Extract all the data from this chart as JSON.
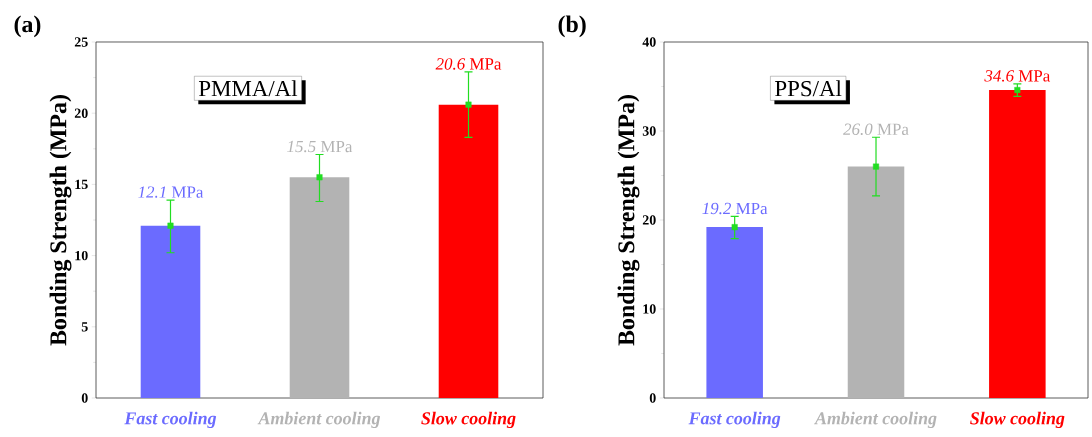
{
  "chart_data": [
    {
      "type": "bar",
      "title": "(a)",
      "ylabel": "Bonding Strength (MPa)",
      "categories": [
        "Fast cooling",
        "Ambient cooling",
        "Slow cooling"
      ],
      "values": [
        12.1,
        15.5,
        20.6
      ],
      "colors": [
        "#6b6bff",
        "#b3b3b3",
        "#ff0000"
      ],
      "errors": [
        [
          10.2,
          13.9
        ],
        [
          13.8,
          17.1
        ],
        [
          18.3,
          22.9
        ]
      ],
      "value_labels": [
        "*12.1* MPa",
        "*15.5* MPa",
        "*20.6* MPa"
      ],
      "annotations": [
        "PMMA/Al"
      ],
      "ylim": [
        0,
        25
      ],
      "yticks": [
        0,
        5,
        10,
        15,
        20,
        25
      ],
      "series": [
        {
          "type": "scatter",
          "x": [
            "Fast cooling",
            "Ambient cooling",
            "Slow cooling"
          ],
          "values": [
            12.1,
            15.5,
            20.6
          ],
          "color": "#22dd22",
          "marker": "square"
        }
      ]
    },
    {
      "type": "bar",
      "title": "(b)",
      "ylabel": "Bonding Strength (MPa)",
      "categories": [
        "Fast cooling",
        "Ambient cooling",
        "Slow cooling"
      ],
      "values": [
        19.2,
        26.0,
        34.6
      ],
      "colors": [
        "#6b6bff",
        "#b3b3b3",
        "#ff0000"
      ],
      "errors": [
        [
          17.9,
          20.4
        ],
        [
          22.7,
          29.3
        ],
        [
          33.9,
          35.3
        ]
      ],
      "value_labels": [
        "*19.2* MPa",
        "*26.0* MPa",
        "*34.6* MPa"
      ],
      "annotations": [
        "PPS/Al"
      ],
      "ylim": [
        0,
        40
      ],
      "yticks": [
        0,
        10,
        20,
        30,
        40
      ],
      "series": [
        {
          "type": "scatter",
          "x": [
            "Fast cooling",
            "Ambient cooling",
            "Slow cooling"
          ],
          "values": [
            19.2,
            26.0,
            34.6
          ],
          "color": "#22dd22",
          "marker": "square"
        }
      ]
    }
  ]
}
